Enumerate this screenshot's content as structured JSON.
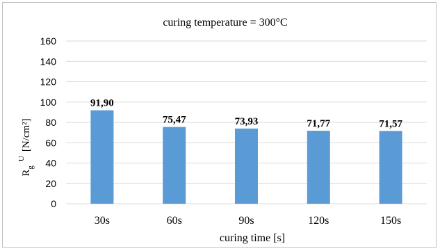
{
  "chart_data": {
    "type": "bar",
    "title": "curing  temperature = 300°C",
    "categories": [
      "30s",
      "60s",
      "90s",
      "120s",
      "150s"
    ],
    "values": [
      91.9,
      75.47,
      73.93,
      71.77,
      71.57
    ],
    "data_labels": [
      "91,90",
      "75,47",
      "73,93",
      "71,77",
      "71,57"
    ],
    "ylim": [
      0,
      160
    ],
    "yticks": [
      "0",
      "20",
      "40",
      "60",
      "80",
      "100",
      "120",
      "140",
      "160"
    ],
    "xlabel": "curing  time [s]",
    "ylabel": {
      "main": "R",
      "sub": "g",
      "sup": "U",
      "unit": "[N/cm²]"
    },
    "grid": true,
    "legend": "none",
    "colors": {
      "bar": "#5b9bd5",
      "grid": "#d9d9d9",
      "text": "#000000"
    }
  }
}
